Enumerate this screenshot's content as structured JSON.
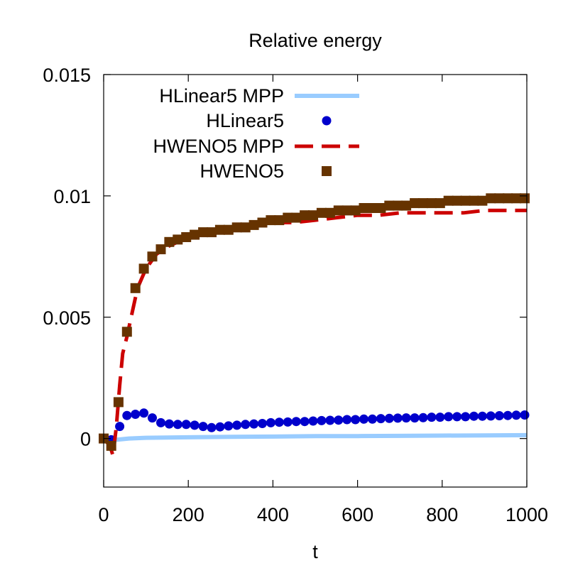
{
  "chart_data": {
    "type": "line",
    "title": "Relative energy",
    "xlabel": "t",
    "ylabel": "",
    "xlim": [
      0,
      1000
    ],
    "ylim": [
      -0.002,
      0.015
    ],
    "x_ticks": [
      0,
      200,
      400,
      600,
      800,
      1000
    ],
    "x_tick_labels": [
      "0",
      "200",
      "400",
      "600",
      "800",
      "1000"
    ],
    "y_ticks": [
      0,
      0.005,
      0.01,
      0.015
    ],
    "y_tick_labels": [
      "0",
      "0.005",
      "0.01",
      "0.015"
    ],
    "legend_position": "top-left",
    "series": [
      {
        "name": "HLinear5 MPP",
        "style": "line",
        "color": "#99ccff",
        "x": [
          0,
          18,
          30,
          60,
          100,
          200,
          300,
          400,
          500,
          600,
          700,
          800,
          900,
          1000
        ],
        "y": [
          0,
          -5e-05,
          -5e-05,
          0,
          3e-05,
          5e-05,
          7e-05,
          8e-05,
          0.0001,
          0.0001,
          0.00011,
          0.00012,
          0.00013,
          0.00014
        ]
      },
      {
        "name": "HLinear5",
        "style": "points-circle",
        "color": "#0000cc",
        "x": [
          0,
          18,
          38,
          55,
          75,
          95,
          115,
          135,
          155,
          175,
          195,
          215,
          235,
          255,
          275,
          295,
          315,
          335,
          355,
          375,
          395,
          415,
          435,
          455,
          475,
          495,
          515,
          535,
          555,
          575,
          595,
          615,
          635,
          655,
          675,
          695,
          715,
          735,
          755,
          775,
          795,
          815,
          835,
          855,
          875,
          895,
          915,
          935,
          955,
          975,
          995
        ],
        "y": [
          0,
          -5e-05,
          0.0005,
          0.00095,
          0.001,
          0.00105,
          0.00085,
          0.00065,
          0.0006,
          0.00058,
          0.00058,
          0.00055,
          0.0005,
          0.00045,
          0.00048,
          0.00052,
          0.00055,
          0.00058,
          0.0006,
          0.00062,
          0.00065,
          0.00067,
          0.00068,
          0.0007,
          0.0007,
          0.00072,
          0.00074,
          0.00075,
          0.00076,
          0.00078,
          0.00078,
          0.0008,
          0.0008,
          0.00082,
          0.00083,
          0.00084,
          0.00085,
          0.00085,
          0.00086,
          0.00088,
          0.00088,
          0.0009,
          0.0009,
          0.0009,
          0.00092,
          0.00092,
          0.00093,
          0.00094,
          0.00095,
          0.00096,
          0.00097
        ]
      },
      {
        "name": "HWENO5 MPP",
        "style": "dashed",
        "color": "#cc0000",
        "x": [
          0,
          15,
          22,
          30,
          38,
          45,
          55,
          65,
          80,
          100,
          125,
          150,
          200,
          250,
          300,
          350,
          400,
          450,
          500,
          550,
          600,
          650,
          700,
          750,
          800,
          850,
          900,
          950,
          1000
        ],
        "y": [
          0,
          -0.0003,
          -0.0007,
          0.0005,
          0.0022,
          0.0035,
          0.0042,
          0.005,
          0.0062,
          0.007,
          0.0076,
          0.0079,
          0.0083,
          0.0085,
          0.0086,
          0.0087,
          0.0089,
          0.0089,
          0.009,
          0.0091,
          0.0092,
          0.0092,
          0.0093,
          0.0093,
          0.0093,
          0.0093,
          0.0094,
          0.0094,
          0.0094
        ]
      },
      {
        "name": "HWENO5",
        "style": "points-square",
        "color": "#663300",
        "x": [
          0,
          18,
          35,
          55,
          75,
          95,
          115,
          135,
          155,
          175,
          195,
          215,
          235,
          255,
          275,
          295,
          315,
          335,
          355,
          375,
          395,
          415,
          435,
          455,
          475,
          495,
          515,
          535,
          555,
          575,
          595,
          615,
          635,
          655,
          675,
          695,
          715,
          735,
          755,
          775,
          795,
          815,
          835,
          855,
          875,
          895,
          915,
          935,
          955,
          975,
          995
        ],
        "y": [
          0,
          -0.0003,
          0.0015,
          0.0044,
          0.0062,
          0.007,
          0.0075,
          0.0078,
          0.0081,
          0.0082,
          0.0083,
          0.0084,
          0.0085,
          0.0085,
          0.0086,
          0.0086,
          0.0087,
          0.0087,
          0.0088,
          0.0089,
          0.009,
          0.009,
          0.0091,
          0.0091,
          0.0092,
          0.0092,
          0.0093,
          0.0093,
          0.0094,
          0.0094,
          0.0094,
          0.0095,
          0.0095,
          0.0095,
          0.0096,
          0.0096,
          0.0096,
          0.0097,
          0.0097,
          0.0097,
          0.0097,
          0.0098,
          0.0098,
          0.0098,
          0.0098,
          0.0098,
          0.0099,
          0.0099,
          0.0099,
          0.0099,
          0.0099
        ]
      }
    ]
  }
}
